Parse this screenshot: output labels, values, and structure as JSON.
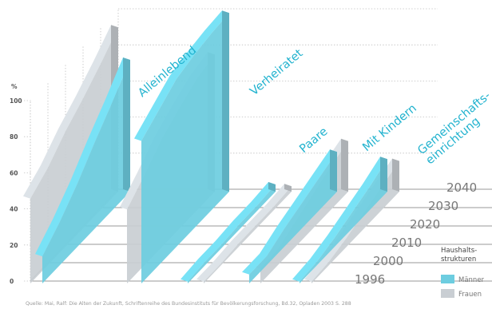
{
  "chart_data": {
    "type": "area",
    "subtype": "3d-ribbon",
    "y_unit": "%",
    "y_ticks": [
      "0",
      "20",
      "40",
      "60",
      "80",
      "100"
    ],
    "ylim": [
      0,
      100
    ],
    "x": [
      "1996",
      "2000",
      "2010",
      "2020",
      "2030",
      "2040"
    ],
    "groups": [
      {
        "label": "Alleinlebend",
        "series": [
          {
            "name": "Männer",
            "values": [
              15,
              24,
              35,
              48,
              60,
              73
            ]
          },
          {
            "name": "Frauen",
            "values": [
              47,
              54,
              64,
              72,
              81,
              91
            ]
          }
        ]
      },
      {
        "label": "Verheiratet",
        "series": [
          {
            "name": "Männer",
            "values": [
              79,
              86,
              93,
              96,
              98,
              99
            ]
          },
          {
            "name": "Frauen",
            "values": [
              41,
              50,
              60,
              67,
              73,
              76
            ]
          }
        ]
      },
      {
        "label": "Paare",
        "series": [
          {
            "name": "Männer",
            "values": [
              1,
              2,
              2,
              3,
              3,
              4
            ]
          },
          {
            "name": "Frauen",
            "values": [
              1,
              1,
              2,
              2,
              2,
              3
            ]
          }
        ]
      },
      {
        "label": "Mit Kindern",
        "series": [
          {
            "name": "Männer",
            "values": [
              5,
              5,
              10,
              14,
              18,
              22
            ]
          },
          {
            "name": "Frauen",
            "values": [
              8,
              9,
              14,
              19,
              24,
              28
            ]
          }
        ]
      },
      {
        "label": "Gemeinschafts-\neinrichtung",
        "series": [
          {
            "name": "Männer",
            "values": [
              1,
              2,
              5,
              9,
              13,
              18
            ]
          },
          {
            "name": "Frauen",
            "values": [
              1,
              2,
              5,
              9,
              13,
              17
            ]
          }
        ]
      }
    ],
    "legend": {
      "title": "Haushalts-\nstrukturen",
      "items": [
        "Männer",
        "Frauen"
      ],
      "position": "bottom-right"
    },
    "colors": {
      "Männer": "#6dcde0",
      "Frauen": "#c9ced3"
    },
    "grid": true
  },
  "source": "Quelle: Mai, Ralf: Die Alten der Zukunft, Schriftenreihe des Bundesinstituts für Bevölkerungsforschung, Bd.32, Opladen 2003 S. 288"
}
